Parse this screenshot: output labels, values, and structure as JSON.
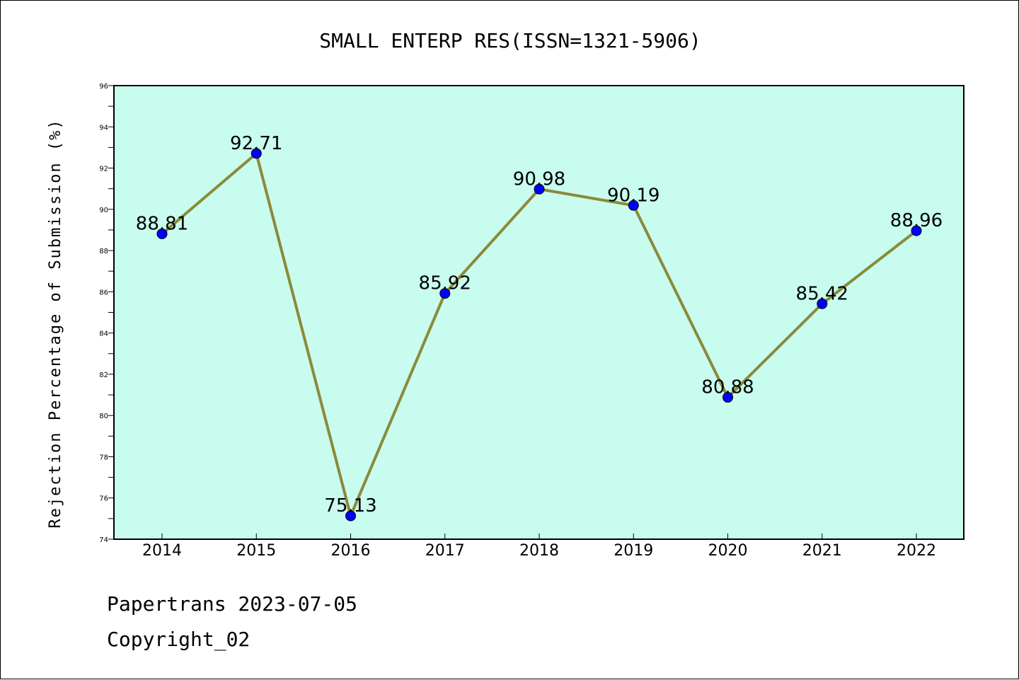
{
  "chart_data": {
    "type": "line",
    "title": "SMALL ENTERP RES(ISSN=1321-5906)",
    "ylabel": "Rejection Percentage of Submission (%)",
    "xlabel": "",
    "categories": [
      "2014",
      "2015",
      "2016",
      "2017",
      "2018",
      "2019",
      "2020",
      "2021",
      "2022"
    ],
    "values": [
      88.81,
      92.71,
      75.13,
      85.92,
      90.98,
      90.19,
      80.88,
      85.42,
      88.96
    ],
    "data_labels": [
      "88.81",
      "92.71",
      "75.13",
      "85.92",
      "90.98",
      "90.19",
      "80.88",
      "85.42",
      "88.96"
    ],
    "ylim": [
      74,
      96
    ],
    "yticks": [
      "74",
      "76",
      "78",
      "80",
      "82",
      "84",
      "86",
      "88",
      "90",
      "92",
      "94",
      "96"
    ],
    "grid": false,
    "legend": "none",
    "colors": {
      "plot_background": "#c8fcee",
      "line": "#8b8a3a",
      "marker": "#0000ff"
    }
  },
  "footer": {
    "line1": "Papertrans 2023-07-05",
    "line2": "Copyright_02"
  }
}
